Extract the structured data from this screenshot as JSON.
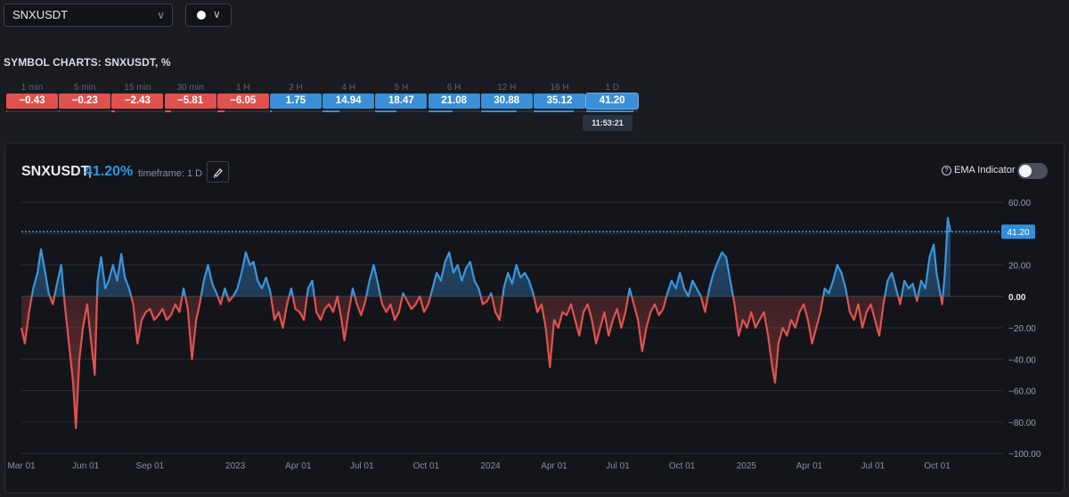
{
  "symbol_select": {
    "value": "SNXUSDT",
    "chevron_icon": "chevron-down-icon"
  },
  "color_select": {
    "color": "#ffffff",
    "chevron_icon": "chevron-down-icon"
  },
  "section_title": "SYMBOL CHARTS: SNXUSDT, %",
  "timeframes": [
    {
      "label": "1 min",
      "value": "−0.43",
      "num": -0.43
    },
    {
      "label": "5 min",
      "value": "−0.23",
      "num": -0.23
    },
    {
      "label": "15 min",
      "value": "−2.43",
      "num": -2.43
    },
    {
      "label": "30 min",
      "value": "−5.81",
      "num": -5.81
    },
    {
      "label": "1 H",
      "value": "−6.05",
      "num": -6.05
    },
    {
      "label": "2 H",
      "value": "1.75",
      "num": 1.75
    },
    {
      "label": "4 H",
      "value": "14.94",
      "num": 14.94
    },
    {
      "label": "5 H",
      "value": "18.47",
      "num": 18.47
    },
    {
      "label": "6 H",
      "value": "21.08",
      "num": 21.08
    },
    {
      "label": "12 H",
      "value": "30.88",
      "num": 30.88
    },
    {
      "label": "16 H",
      "value": "35.12",
      "num": 35.12
    },
    {
      "label": "1 D",
      "value": "41.20",
      "num": 41.2
    }
  ],
  "active_time": "11:53:21",
  "chart_header": {
    "symbol": "SNXUSDT,",
    "pct": "41.20%",
    "timeframe": "timeframe: 1 D",
    "edit_icon": "brush-icon",
    "ema_label": "EMA Indicator",
    "help_icon": "question-circle-icon",
    "ema_enabled": false
  },
  "colors": {
    "positive": "#3a95db",
    "negative": "#e0524e",
    "last_line": "#3aa0e8"
  },
  "chart_data": {
    "type": "area",
    "ylim": [
      -100,
      60
    ],
    "y_ticks": [
      "60.00",
      "40.00",
      "20.00",
      "0.00",
      "−20.00",
      "−40.00",
      "−60.00",
      "−80.00",
      "−100.00"
    ],
    "y_tick_values": [
      60,
      40,
      20,
      0,
      -20,
      -40,
      -60,
      -80,
      -100
    ],
    "x_ticks": [
      {
        "label": "Mar 01",
        "date": "2022-03-01"
      },
      {
        "label": "Jun 01",
        "date": "2022-06-01"
      },
      {
        "label": "Sep 01",
        "date": "2022-09-01"
      },
      {
        "label": "2023",
        "date": "2023-01-01"
      },
      {
        "label": "Apr 01",
        "date": "2023-04-01"
      },
      {
        "label": "Jul 01",
        "date": "2023-07-01"
      },
      {
        "label": "Oct 01",
        "date": "2023-10-01"
      },
      {
        "label": "2024",
        "date": "2024-01-01"
      },
      {
        "label": "Apr 01",
        "date": "2024-04-01"
      },
      {
        "label": "Jul 01",
        "date": "2024-07-01"
      },
      {
        "label": "Oct 01",
        "date": "2024-10-01"
      },
      {
        "label": "2025",
        "date": "2025-01-01"
      },
      {
        "label": "Apr 01",
        "date": "2025-04-01"
      },
      {
        "label": "Jul 01",
        "date": "2025-07-01"
      },
      {
        "label": "Oct 01",
        "date": "2025-10-01"
      }
    ],
    "x_range": [
      "2022-03-01",
      "2025-10-20"
    ],
    "last_value": 41.2,
    "last_value_label": "41.20",
    "series": [
      {
        "points": [
          [
            "2022-03-01",
            -20
          ],
          [
            "2022-03-06",
            -30
          ],
          [
            "2022-03-12",
            -10
          ],
          [
            "2022-03-18",
            5
          ],
          [
            "2022-03-24",
            15
          ],
          [
            "2022-03-29",
            30
          ],
          [
            "2022-04-03",
            18
          ],
          [
            "2022-04-09",
            2
          ],
          [
            "2022-04-15",
            -5
          ],
          [
            "2022-04-21",
            8
          ],
          [
            "2022-04-27",
            20
          ],
          [
            "2022-05-02",
            -5
          ],
          [
            "2022-05-08",
            -30
          ],
          [
            "2022-05-14",
            -55
          ],
          [
            "2022-05-18",
            -84
          ],
          [
            "2022-05-23",
            -40
          ],
          [
            "2022-05-28",
            -20
          ],
          [
            "2022-06-03",
            -5
          ],
          [
            "2022-06-09",
            -30
          ],
          [
            "2022-06-14",
            -50
          ],
          [
            "2022-06-18",
            10
          ],
          [
            "2022-06-23",
            25
          ],
          [
            "2022-06-29",
            5
          ],
          [
            "2022-07-04",
            10
          ],
          [
            "2022-07-10",
            20
          ],
          [
            "2022-07-16",
            10
          ],
          [
            "2022-07-22",
            27
          ],
          [
            "2022-07-27",
            12
          ],
          [
            "2022-08-02",
            5
          ],
          [
            "2022-08-08",
            -5
          ],
          [
            "2022-08-14",
            -30
          ],
          [
            "2022-08-20",
            -15
          ],
          [
            "2022-08-26",
            -10
          ],
          [
            "2022-09-01",
            -8
          ],
          [
            "2022-09-07",
            -15
          ],
          [
            "2022-09-13",
            -12
          ],
          [
            "2022-09-19",
            -8
          ],
          [
            "2022-09-25",
            -15
          ],
          [
            "2022-10-01",
            -12
          ],
          [
            "2022-10-07",
            -5
          ],
          [
            "2022-10-13",
            -10
          ],
          [
            "2022-10-19",
            5
          ],
          [
            "2022-10-25",
            -8
          ],
          [
            "2022-10-31",
            -40
          ],
          [
            "2022-11-06",
            -15
          ],
          [
            "2022-11-11",
            -5
          ],
          [
            "2022-11-17",
            10
          ],
          [
            "2022-11-23",
            20
          ],
          [
            "2022-11-29",
            8
          ],
          [
            "2022-12-05",
            2
          ],
          [
            "2022-12-11",
            -5
          ],
          [
            "2022-12-17",
            5
          ],
          [
            "2022-12-23",
            -3
          ],
          [
            "2022-12-29",
            0
          ],
          [
            "2023-01-04",
            5
          ],
          [
            "2023-01-10",
            15
          ],
          [
            "2023-01-16",
            28
          ],
          [
            "2023-01-22",
            20
          ],
          [
            "2023-01-27",
            22
          ],
          [
            "2023-02-02",
            10
          ],
          [
            "2023-02-08",
            5
          ],
          [
            "2023-02-14",
            12
          ],
          [
            "2023-02-20",
            3
          ],
          [
            "2023-02-26",
            -15
          ],
          [
            "2023-03-04",
            -10
          ],
          [
            "2023-03-10",
            -20
          ],
          [
            "2023-03-16",
            -5
          ],
          [
            "2023-03-22",
            5
          ],
          [
            "2023-03-28",
            -8
          ],
          [
            "2023-04-03",
            -10
          ],
          [
            "2023-04-09",
            -15
          ],
          [
            "2023-04-15",
            5
          ],
          [
            "2023-04-21",
            10
          ],
          [
            "2023-04-27",
            -10
          ],
          [
            "2023-05-03",
            -15
          ],
          [
            "2023-05-09",
            -8
          ],
          [
            "2023-05-15",
            -5
          ],
          [
            "2023-05-21",
            -10
          ],
          [
            "2023-05-27",
            0
          ],
          [
            "2023-06-02",
            -15
          ],
          [
            "2023-06-06",
            -28
          ],
          [
            "2023-06-12",
            -10
          ],
          [
            "2023-06-18",
            5
          ],
          [
            "2023-06-24",
            -5
          ],
          [
            "2023-06-30",
            -12
          ],
          [
            "2023-07-06",
            -3
          ],
          [
            "2023-07-12",
            10
          ],
          [
            "2023-07-18",
            20
          ],
          [
            "2023-07-24",
            8
          ],
          [
            "2023-07-30",
            -5
          ],
          [
            "2023-08-05",
            -10
          ],
          [
            "2023-08-11",
            -5
          ],
          [
            "2023-08-17",
            -15
          ],
          [
            "2023-08-23",
            -10
          ],
          [
            "2023-08-29",
            2
          ],
          [
            "2023-09-04",
            -3
          ],
          [
            "2023-09-10",
            -8
          ],
          [
            "2023-09-16",
            -5
          ],
          [
            "2023-09-22",
            0
          ],
          [
            "2023-09-28",
            -10
          ],
          [
            "2023-10-04",
            -5
          ],
          [
            "2023-10-10",
            5
          ],
          [
            "2023-10-16",
            15
          ],
          [
            "2023-10-22",
            10
          ],
          [
            "2023-10-28",
            22
          ],
          [
            "2023-11-03",
            28
          ],
          [
            "2023-11-09",
            15
          ],
          [
            "2023-11-15",
            20
          ],
          [
            "2023-11-21",
            10
          ],
          [
            "2023-11-27",
            18
          ],
          [
            "2023-12-03",
            22
          ],
          [
            "2023-12-09",
            10
          ],
          [
            "2023-12-15",
            5
          ],
          [
            "2023-12-21",
            -5
          ],
          [
            "2023-12-27",
            -3
          ],
          [
            "2024-01-02",
            2
          ],
          [
            "2024-01-08",
            -10
          ],
          [
            "2024-01-14",
            -15
          ],
          [
            "2024-01-20",
            5
          ],
          [
            "2024-01-26",
            15
          ],
          [
            "2024-02-01",
            8
          ],
          [
            "2024-02-07",
            20
          ],
          [
            "2024-02-13",
            12
          ],
          [
            "2024-02-19",
            15
          ],
          [
            "2024-02-25",
            10
          ],
          [
            "2024-03-02",
            2
          ],
          [
            "2024-03-08",
            -10
          ],
          [
            "2024-03-14",
            -5
          ],
          [
            "2024-03-20",
            -20
          ],
          [
            "2024-03-26",
            -45
          ],
          [
            "2024-04-01",
            -15
          ],
          [
            "2024-04-07",
            -20
          ],
          [
            "2024-04-13",
            -10
          ],
          [
            "2024-04-19",
            -12
          ],
          [
            "2024-04-25",
            -5
          ],
          [
            "2024-05-01",
            -15
          ],
          [
            "2024-05-07",
            -25
          ],
          [
            "2024-05-13",
            -10
          ],
          [
            "2024-05-19",
            -5
          ],
          [
            "2024-05-25",
            -15
          ],
          [
            "2024-05-31",
            -30
          ],
          [
            "2024-06-06",
            -20
          ],
          [
            "2024-06-12",
            -10
          ],
          [
            "2024-06-18",
            -25
          ],
          [
            "2024-06-24",
            -15
          ],
          [
            "2024-06-30",
            -8
          ],
          [
            "2024-07-06",
            -20
          ],
          [
            "2024-07-12",
            -10
          ],
          [
            "2024-07-18",
            5
          ],
          [
            "2024-07-24",
            -5
          ],
          [
            "2024-07-30",
            -15
          ],
          [
            "2024-08-05",
            -35
          ],
          [
            "2024-08-11",
            -20
          ],
          [
            "2024-08-17",
            -10
          ],
          [
            "2024-08-23",
            -5
          ],
          [
            "2024-08-29",
            -12
          ],
          [
            "2024-09-04",
            -8
          ],
          [
            "2024-09-10",
            2
          ],
          [
            "2024-09-16",
            10
          ],
          [
            "2024-09-22",
            5
          ],
          [
            "2024-09-28",
            15
          ],
          [
            "2024-10-04",
            5
          ],
          [
            "2024-10-10",
            0
          ],
          [
            "2024-10-16",
            10
          ],
          [
            "2024-10-22",
            5
          ],
          [
            "2024-10-28",
            0
          ],
          [
            "2024-11-03",
            -10
          ],
          [
            "2024-11-09",
            5
          ],
          [
            "2024-11-15",
            15
          ],
          [
            "2024-11-21",
            22
          ],
          [
            "2024-11-27",
            28
          ],
          [
            "2024-12-03",
            25
          ],
          [
            "2024-12-09",
            10
          ],
          [
            "2024-12-15",
            -5
          ],
          [
            "2024-12-21",
            -25
          ],
          [
            "2024-12-27",
            -15
          ],
          [
            "2025-01-02",
            -20
          ],
          [
            "2025-01-08",
            -10
          ],
          [
            "2025-01-14",
            -20
          ],
          [
            "2025-01-20",
            -15
          ],
          [
            "2025-01-26",
            -10
          ],
          [
            "2025-02-01",
            -25
          ],
          [
            "2025-02-07",
            -45
          ],
          [
            "2025-02-11",
            -55
          ],
          [
            "2025-02-16",
            -30
          ],
          [
            "2025-02-22",
            -20
          ],
          [
            "2025-02-28",
            -25
          ],
          [
            "2025-03-06",
            -15
          ],
          [
            "2025-03-12",
            -20
          ],
          [
            "2025-03-18",
            -10
          ],
          [
            "2025-03-24",
            -5
          ],
          [
            "2025-03-30",
            -15
          ],
          [
            "2025-04-05",
            -30
          ],
          [
            "2025-04-11",
            -20
          ],
          [
            "2025-04-17",
            -10
          ],
          [
            "2025-04-23",
            5
          ],
          [
            "2025-04-29",
            2
          ],
          [
            "2025-05-05",
            10
          ],
          [
            "2025-05-11",
            20
          ],
          [
            "2025-05-17",
            15
          ],
          [
            "2025-05-23",
            5
          ],
          [
            "2025-05-29",
            -10
          ],
          [
            "2025-06-04",
            -15
          ],
          [
            "2025-06-10",
            -5
          ],
          [
            "2025-06-16",
            -20
          ],
          [
            "2025-06-22",
            -10
          ],
          [
            "2025-06-28",
            -5
          ],
          [
            "2025-07-04",
            -15
          ],
          [
            "2025-07-10",
            -25
          ],
          [
            "2025-07-16",
            -5
          ],
          [
            "2025-07-22",
            10
          ],
          [
            "2025-07-28",
            15
          ],
          [
            "2025-08-03",
            5
          ],
          [
            "2025-08-09",
            -5
          ],
          [
            "2025-08-15",
            10
          ],
          [
            "2025-08-21",
            5
          ],
          [
            "2025-08-27",
            8
          ],
          [
            "2025-09-02",
            -3
          ],
          [
            "2025-09-08",
            10
          ],
          [
            "2025-09-14",
            5
          ],
          [
            "2025-09-20",
            25
          ],
          [
            "2025-09-26",
            33
          ],
          [
            "2025-09-30",
            15
          ],
          [
            "2025-10-04",
            5
          ],
          [
            "2025-10-08",
            -5
          ],
          [
            "2025-10-12",
            15
          ],
          [
            "2025-10-16",
            50
          ],
          [
            "2025-10-20",
            41.2
          ]
        ]
      }
    ]
  }
}
